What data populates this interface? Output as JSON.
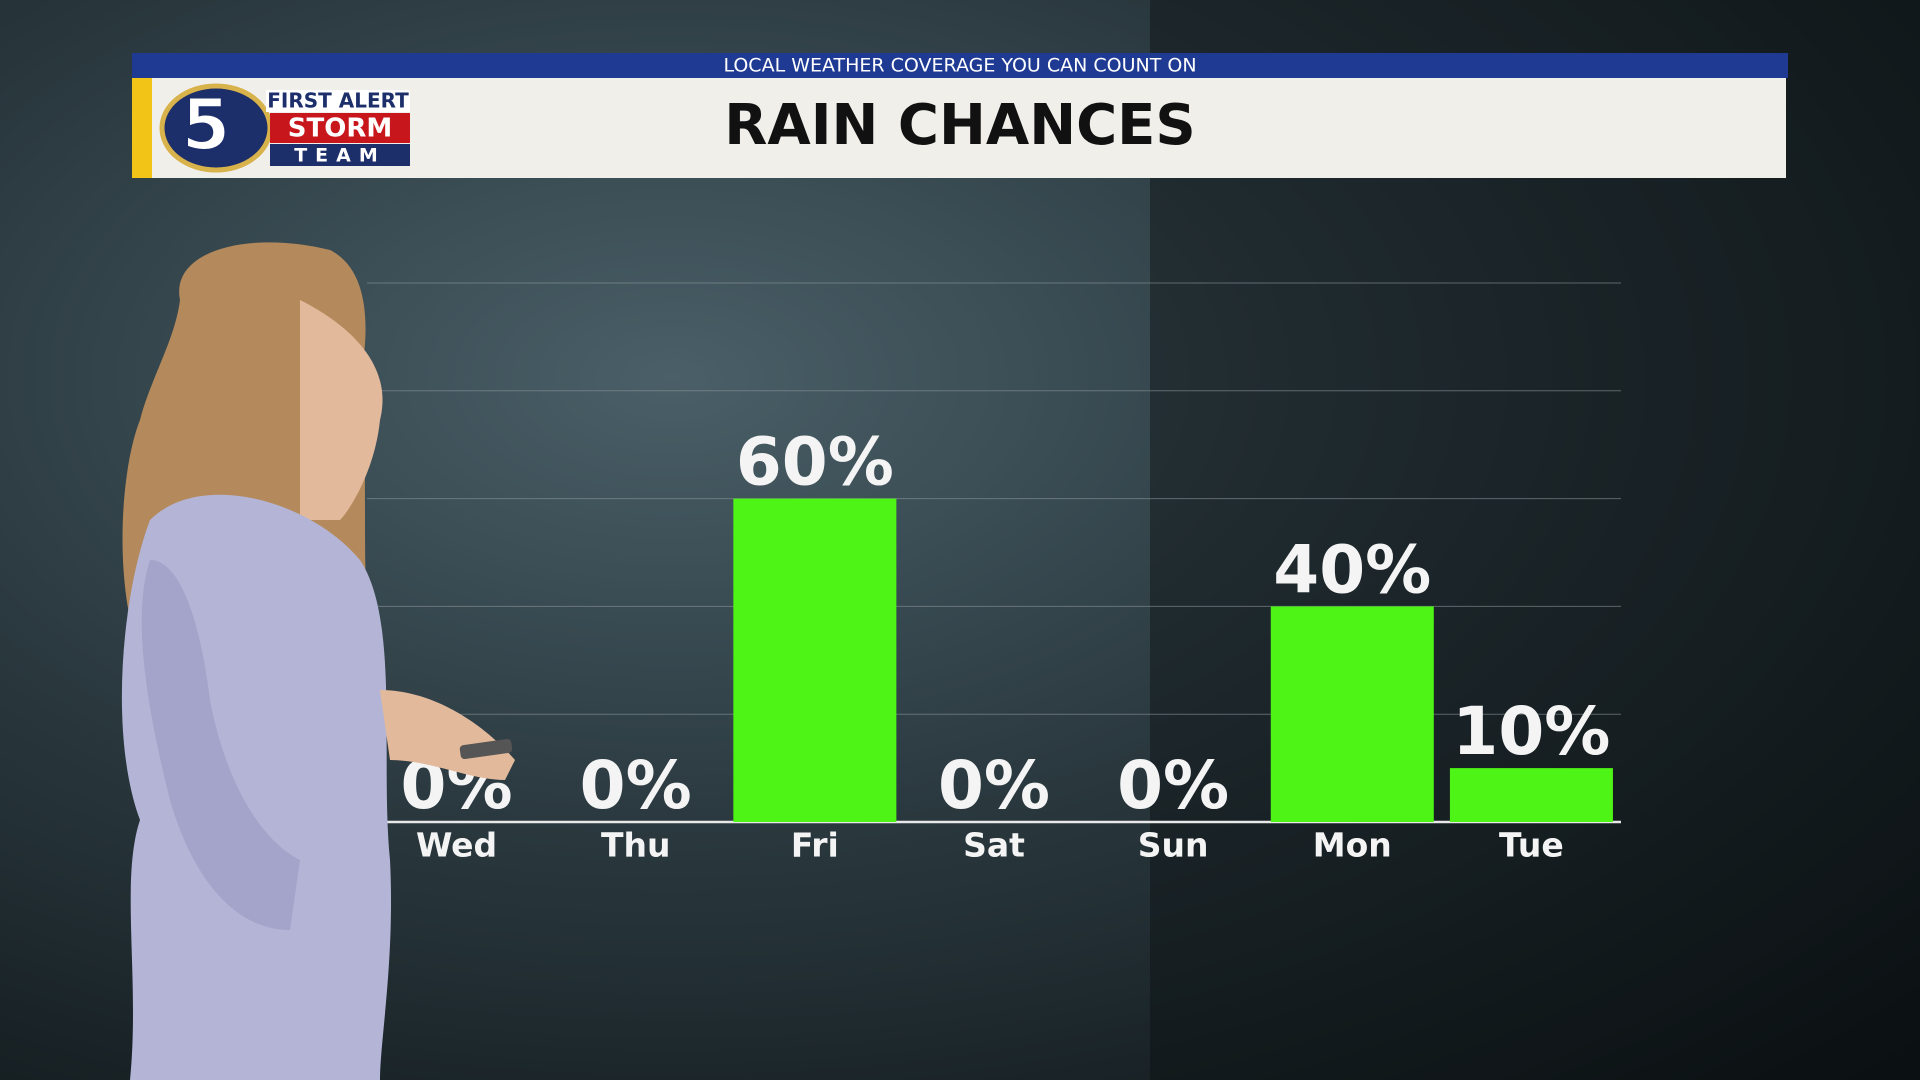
{
  "banner": "LOCAL WEATHER COVERAGE YOU CAN COUNT ON",
  "logo": {
    "number": "5",
    "line1": "FIRST ALERT",
    "line2": "STORM",
    "line3": "TEAM"
  },
  "chart_data": {
    "type": "bar",
    "title": "RAIN CHANCES",
    "categories": [
      "Wed",
      "Thu",
      "Fri",
      "Sat",
      "Sun",
      "Mon",
      "Tue"
    ],
    "values": [
      0,
      0,
      60,
      0,
      0,
      40,
      10
    ],
    "value_labels": [
      "0%",
      "0%",
      "60%",
      "0%",
      "0%",
      "40%",
      "10%"
    ],
    "color": "#4ef415",
    "ylim": [
      0,
      100
    ],
    "yticks": [
      0,
      20,
      40,
      60,
      80,
      100
    ],
    "grid": true
  }
}
